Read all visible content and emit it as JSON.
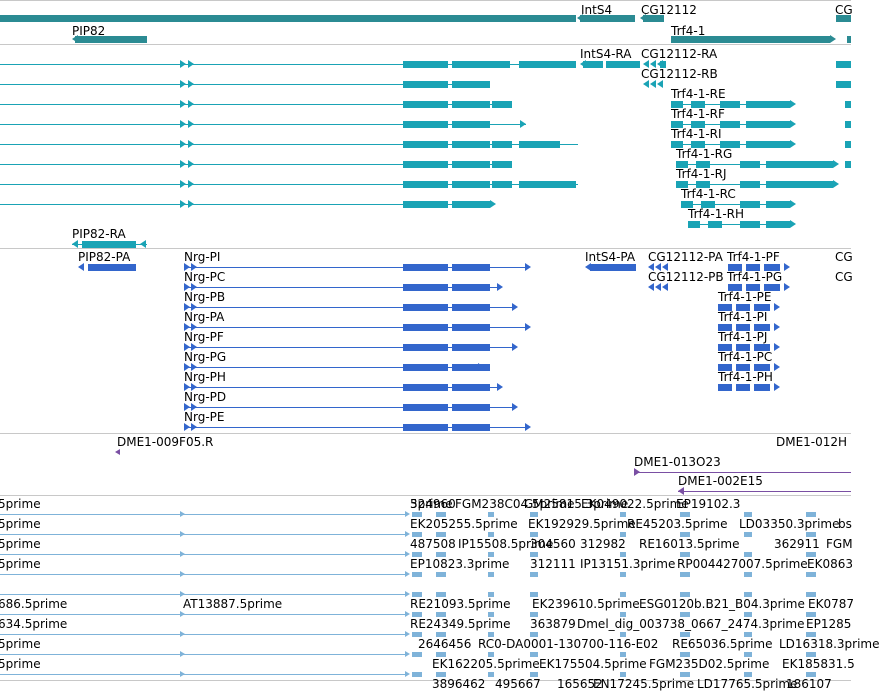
{
  "colors": {
    "cdna": "#1aa3b5",
    "cdna_dark": "#2b8b93",
    "protein": "#3366cc",
    "clone": "#7a4fa3",
    "est": "#7fb3d9",
    "separator": "#c8c8c8"
  },
  "tracks": {
    "genes": {
      "features": [
        {
          "id": "gene-bar-long",
          "label": "",
          "strand": "+",
          "color": "cdna_dark"
        },
        {
          "id": "gene-intS4",
          "label": "IntS4",
          "strand": "-",
          "color": "cdna_dark"
        },
        {
          "id": "gene-cg12112",
          "label": "CG12112",
          "strand": "-",
          "color": "cdna_dark"
        },
        {
          "id": "gene-cg-edge",
          "label": "CG",
          "strand": "-",
          "color": "cdna_dark"
        },
        {
          "id": "gene-pip82",
          "label": "PIP82",
          "strand": "-",
          "color": "cdna_dark"
        },
        {
          "id": "gene-trf4-1",
          "label": "Trf4-1",
          "strand": "+",
          "color": "cdna_dark"
        }
      ]
    },
    "transcripts": {
      "features": [
        {
          "label": "IntS4-RA"
        },
        {
          "label": "CG12112-RA"
        },
        {
          "label": "CG12112-RB"
        },
        {
          "label": "Trf4-1-RE"
        },
        {
          "label": "Trf4-1-RF"
        },
        {
          "label": "Trf4-1-RI"
        },
        {
          "label": "Trf4-1-RG"
        },
        {
          "label": "Trf4-1-RJ"
        },
        {
          "label": "Trf4-1-RC"
        },
        {
          "label": "Trf4-1-RH"
        },
        {
          "label": "PIP82-RA"
        }
      ]
    },
    "proteins": {
      "features": [
        {
          "label": "PIP82-PA"
        },
        {
          "label": "Nrg-PI"
        },
        {
          "label": "Nrg-PC"
        },
        {
          "label": "Nrg-PB"
        },
        {
          "label": "Nrg-PA"
        },
        {
          "label": "Nrg-PF"
        },
        {
          "label": "Nrg-PG"
        },
        {
          "label": "Nrg-PH"
        },
        {
          "label": "Nrg-PD"
        },
        {
          "label": "Nrg-PE"
        },
        {
          "label": "IntS4-PA"
        },
        {
          "label": "CG12112-PA"
        },
        {
          "label": "CG12112-PB"
        },
        {
          "label": "Trf4-1-PF"
        },
        {
          "label": "Trf4-1-PG"
        },
        {
          "label": "Trf4-1-PE"
        },
        {
          "label": "Trf4-1-PI"
        },
        {
          "label": "Trf4-1-PJ"
        },
        {
          "label": "Trf4-1-PC"
        },
        {
          "label": "Trf4-1-PH"
        },
        {
          "label": "CG"
        },
        {
          "label": "CG"
        }
      ]
    },
    "clones": {
      "features": [
        {
          "label": "DME1-009F05.R"
        },
        {
          "label": "DME1-012H"
        },
        {
          "label": "DME1-013O23"
        },
        {
          "label": "DME1-002E15"
        }
      ]
    },
    "ests": {
      "features": [
        {
          "label": "5prime"
        },
        {
          "label": "5prime"
        },
        {
          "label": "5prime"
        },
        {
          "label": "5prime"
        },
        {
          "label": "686.5prime"
        },
        {
          "label": "634.5prime"
        },
        {
          "label": "5prime"
        },
        {
          "label": "5prime"
        },
        {
          "label": "AT13887.5prime"
        },
        {
          "label": "324960"
        },
        {
          "label": "FGM238C04.5prime"
        },
        {
          "label": "GM25815.3prime"
        },
        {
          "label": "EK049022.5prime"
        },
        {
          "label": "EP19102.3"
        },
        {
          "label": "EK205255.5prime"
        },
        {
          "label": "EK192929.5prime"
        },
        {
          "label": "RE45203.5prime"
        },
        {
          "label": "LD03350.3prime"
        },
        {
          "label": "bs"
        },
        {
          "label": "487508"
        },
        {
          "label": "IP15508.5prime"
        },
        {
          "label": "304560"
        },
        {
          "label": "312982"
        },
        {
          "label": "RE16013.5prime"
        },
        {
          "label": "362911"
        },
        {
          "label": "FGM"
        },
        {
          "label": "EP10823.3prime"
        },
        {
          "label": "312111"
        },
        {
          "label": "IP13151.3prime"
        },
        {
          "label": "RP004427007.5prime"
        },
        {
          "label": "EK0863"
        },
        {
          "label": "RE21093.5prime"
        },
        {
          "label": "EK239610.5prime"
        },
        {
          "label": "ESG0120b.B21_B04.3prime"
        },
        {
          "label": "EK0787"
        },
        {
          "label": "RE24349.5prime"
        },
        {
          "label": "363879"
        },
        {
          "label": "Dmel_dig_003738_0667_2474.3prime"
        },
        {
          "label": "EP1285"
        },
        {
          "label": "2646456"
        },
        {
          "label": "RC0-DA0001-130700-116-E02"
        },
        {
          "label": "RE65036.5prime"
        },
        {
          "label": "LD16318.3prime"
        },
        {
          "label": "EK162205.5prime"
        },
        {
          "label": "EK175504.5prime"
        },
        {
          "label": "FGM235D02.5prime"
        },
        {
          "label": "EK185831.5"
        },
        {
          "label": "3896462"
        },
        {
          "label": "495667"
        },
        {
          "label": "165652"
        },
        {
          "label": "EN17245.5prime"
        },
        {
          "label": "LD17765.5prime"
        },
        {
          "label": "186107"
        }
      ]
    }
  }
}
